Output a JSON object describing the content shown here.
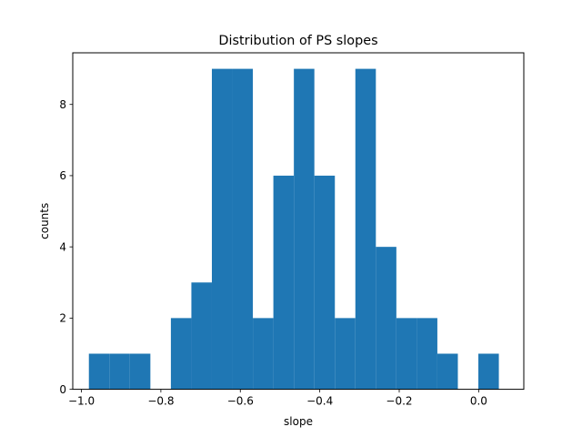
{
  "chart_data": {
    "type": "bar",
    "subtype": "histogram",
    "title": "Distribution of PS slopes",
    "xlabel": "slope",
    "ylabel": "counts",
    "xlim": [
      -1.0218,
      0.1136
    ],
    "ylim": [
      0,
      9.45
    ],
    "bins": [
      {
        "x0": -0.9812,
        "x1": -0.9296,
        "count": 1
      },
      {
        "x0": -0.9296,
        "x1": -0.878,
        "count": 1
      },
      {
        "x0": -0.878,
        "x1": -0.8264,
        "count": 1
      },
      {
        "x0": -0.8264,
        "x1": -0.7748,
        "count": 0
      },
      {
        "x0": -0.7748,
        "x1": -0.7232,
        "count": 2
      },
      {
        "x0": -0.7232,
        "x1": -0.6716,
        "count": 3
      },
      {
        "x0": -0.6716,
        "x1": -0.62,
        "count": 9
      },
      {
        "x0": -0.62,
        "x1": -0.5684,
        "count": 9
      },
      {
        "x0": -0.5684,
        "x1": -0.5168,
        "count": 2
      },
      {
        "x0": -0.5168,
        "x1": -0.4652,
        "count": 6
      },
      {
        "x0": -0.4652,
        "x1": -0.4136,
        "count": 9
      },
      {
        "x0": -0.4136,
        "x1": -0.362,
        "count": 6
      },
      {
        "x0": -0.362,
        "x1": -0.3104,
        "count": 2
      },
      {
        "x0": -0.3104,
        "x1": -0.2588,
        "count": 9
      },
      {
        "x0": -0.2588,
        "x1": -0.2072,
        "count": 4
      },
      {
        "x0": -0.2072,
        "x1": -0.1556,
        "count": 2
      },
      {
        "x0": -0.1556,
        "x1": -0.104,
        "count": 2
      },
      {
        "x0": -0.104,
        "x1": -0.0524,
        "count": 1
      },
      {
        "x0": -0.0524,
        "x1": -0.0008,
        "count": 0
      },
      {
        "x0": -0.0008,
        "x1": 0.0508,
        "count": 1
      }
    ],
    "xticks": [
      -1.0,
      -0.8,
      -0.6,
      -0.4,
      -0.2,
      0.0
    ],
    "xtick_labels": [
      "−1.0",
      "−0.8",
      "−0.6",
      "−0.4",
      "−0.2",
      "0.0"
    ],
    "yticks": [
      0,
      2,
      4,
      6,
      8
    ],
    "ytick_labels": [
      "0",
      "2",
      "4",
      "6",
      "8"
    ],
    "grid": false,
    "colors": {
      "bar": "#1f77b4",
      "axis": "#000000",
      "background": "#ffffff"
    }
  }
}
